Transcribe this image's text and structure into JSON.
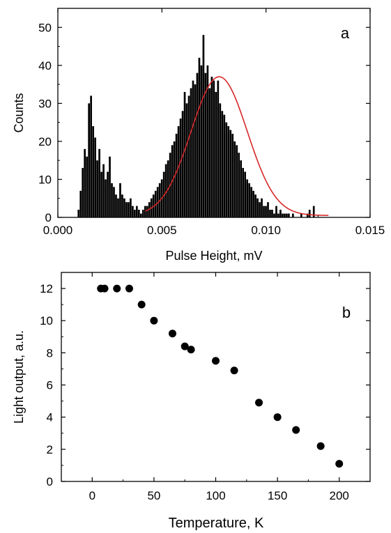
{
  "chart_data": [
    {
      "panel_label": "a",
      "type": "bar",
      "xlabel": "Pulse Height, mV",
      "ylabel": "Counts",
      "xlim": [
        0.0,
        0.015
      ],
      "ylim": [
        0,
        55
      ],
      "xticks": [
        "0.000",
        "0.005",
        "0.010",
        "0.015"
      ],
      "yticks": [
        "0",
        "10",
        "20",
        "30",
        "40",
        "50"
      ],
      "bar_color": "#000000",
      "fit_color": "#d62728",
      "histogram": {
        "bin_start": 0.00095,
        "bin_width": 0.0001,
        "counts": [
          2,
          7,
          13,
          18,
          16,
          30,
          32,
          24,
          21,
          15,
          18,
          12,
          14,
          10,
          12,
          16,
          9,
          8,
          6,
          5,
          9,
          6,
          5,
          4,
          4,
          5,
          3,
          2,
          3,
          2,
          1,
          2,
          3,
          3,
          4,
          5,
          6,
          7,
          8,
          9,
          10,
          12,
          14,
          15,
          17,
          19,
          20,
          22,
          24,
          26,
          28,
          33,
          30,
          32,
          34,
          36,
          35,
          38,
          42,
          40,
          48,
          38,
          40,
          34,
          37,
          36,
          33,
          36,
          30,
          28,
          27,
          25,
          24,
          23,
          22,
          20,
          19,
          17,
          15,
          13,
          12,
          10,
          9,
          8,
          7,
          6,
          5,
          4,
          5,
          3,
          3,
          4,
          2,
          2,
          1,
          3,
          1,
          2,
          1,
          1,
          1,
          1,
          0,
          1,
          0,
          0,
          0,
          1,
          0,
          0,
          1,
          2,
          0,
          3,
          0,
          0
        ]
      },
      "fit": {
        "type": "gaussian",
        "center": 0.00775,
        "amplitude": 36.5,
        "sigma": 0.00135,
        "baseline": 0.5,
        "x_start": 0.0042,
        "x_end": 0.013
      }
    },
    {
      "panel_label": "b",
      "type": "scatter",
      "xlabel": "Temperature, K",
      "ylabel": "Light output, a.u.",
      "xlim": [
        -25,
        225
      ],
      "ylim": [
        0,
        13
      ],
      "xticks": [
        0,
        50,
        100,
        150,
        200
      ],
      "yticks": [
        0,
        2,
        4,
        6,
        8,
        10,
        12
      ],
      "marker_color": "#000000",
      "x": [
        7,
        10,
        20,
        30,
        40,
        50,
        65,
        75,
        80,
        100,
        115,
        135,
        150,
        165,
        185,
        200
      ],
      "y": [
        12.0,
        12.0,
        12.0,
        12.0,
        11.0,
        10.0,
        9.2,
        8.4,
        8.2,
        7.5,
        6.9,
        4.9,
        4.0,
        3.2,
        2.2,
        1.1
      ]
    }
  ]
}
